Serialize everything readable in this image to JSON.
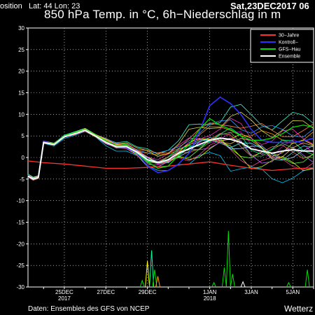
{
  "header": {
    "left": "osition   Lat: 44 Lon: 23",
    "right": "Sat,23DEC2017 06",
    "title": "850 hPa Temp. in °C, 6h−Niederschlag in m"
  },
  "footer": {
    "left": "Daten: Ensembles des GFS von NCEP",
    "right": "Wetterz"
  },
  "colors": {
    "background": "#000000",
    "axis": "#ffffff",
    "grid": "#ffffff",
    "climatology": "#ff3030",
    "control": "#3030ff",
    "main": "#00dd00",
    "mean": "#ffffff",
    "members": [
      "#ff9900",
      "#00ccff",
      "#ffff00",
      "#cc00cc",
      "#00ff99",
      "#ff6666",
      "#66ff33",
      "#99ccff",
      "#ffcc66",
      "#33ffcc",
      "#ff33cc",
      "#ccff00",
      "#3399ff",
      "#ff8844",
      "#44dddd",
      "#dddd44",
      "#bb66ff",
      "#66bb44",
      "#ee4488"
    ]
  },
  "chart_data": {
    "type": "line",
    "title": "850 hPa Temp. in °C, 6h−Niederschlag in m",
    "ylim": [
      -30,
      30
    ],
    "yticks": [
      30,
      25,
      20,
      15,
      10,
      5,
      0,
      -5,
      -10,
      -15,
      -20,
      -25,
      -30
    ],
    "xlim": [
      23.25,
      37.0
    ],
    "xticks": [
      {
        "x": 25,
        "line1": "25DEC",
        "line2": "2017"
      },
      {
        "x": 27,
        "line1": "27DEC",
        "line2": ""
      },
      {
        "x": 29,
        "line1": "29DEC",
        "line2": ""
      },
      {
        "x": 32,
        "line1": "1JAN",
        "line2": "2018"
      },
      {
        "x": 34,
        "line1": "3JAN",
        "line2": ""
      },
      {
        "x": 36,
        "line1": "5JAN",
        "line2": ""
      }
    ],
    "legend_position": "top-right",
    "legend": [
      "30−Jahre",
      "Kontroll−",
      "GFS−Hau",
      "Ensemble"
    ],
    "grid": true,
    "temperature": {
      "climatology": {
        "x": [
          23.25,
          24.0,
          25.0,
          26.0,
          27.0,
          28.0,
          29.0,
          30.0,
          31.0,
          32.0,
          33.0,
          34.0,
          35.0,
          36.0,
          37.0
        ],
        "y": [
          -0.8,
          -1.2,
          -1.5,
          -2.0,
          -2.5,
          -2.5,
          -2.3,
          -2.0,
          -1.5,
          -1.0,
          -1.8,
          -2.5,
          -3.0,
          -2.6,
          -2.4
        ]
      },
      "control": {
        "x": [
          23.25,
          23.5,
          23.75,
          24.0,
          24.5,
          25.0,
          25.5,
          26.0,
          26.5,
          27.0,
          27.5,
          28.0,
          28.5,
          29.0,
          29.5,
          30.0,
          30.5,
          31.0,
          31.5,
          32.0,
          32.5,
          33.0,
          33.5,
          34.0,
          34.5,
          35.0,
          35.5,
          36.0,
          36.5,
          37.0
        ],
        "y": [
          -4.0,
          -5.0,
          -4.5,
          3.8,
          3.0,
          4.8,
          5.5,
          6.2,
          5.0,
          3.5,
          2.5,
          2.2,
          1.0,
          -2.0,
          -3.5,
          -3.0,
          -1.5,
          1.0,
          6.0,
          12.0,
          14.0,
          12.5,
          10.0,
          6.5,
          4.0,
          3.5,
          3.5,
          3.5,
          3.8,
          4.5
        ]
      },
      "main": {
        "x": [
          23.25,
          23.5,
          23.75,
          24.0,
          24.5,
          25.0,
          25.5,
          26.0,
          26.5,
          27.0,
          27.5,
          28.0,
          28.5,
          29.0,
          29.5,
          30.0,
          30.5,
          31.0,
          31.5,
          32.0,
          32.5,
          33.0,
          33.5,
          34.0,
          34.5,
          35.0,
          35.5,
          36.0,
          36.5,
          37.0
        ],
        "y": [
          -4.2,
          -5.0,
          -4.6,
          3.5,
          3.2,
          5.0,
          5.8,
          6.5,
          5.2,
          3.8,
          2.7,
          3.0,
          1.0,
          -1.0,
          -2.5,
          -2.0,
          0.5,
          3.0,
          6.5,
          9.0,
          7.5,
          6.5,
          5.0,
          4.0,
          4.0,
          4.5,
          5.5,
          7.0,
          7.5,
          7.0
        ]
      },
      "mean": {
        "x": [
          23.25,
          23.5,
          23.75,
          24.0,
          24.5,
          25.0,
          25.5,
          26.0,
          26.5,
          27.0,
          27.5,
          28.0,
          28.5,
          29.0,
          29.5,
          30.0,
          30.5,
          31.0,
          31.5,
          32.0,
          32.5,
          33.0,
          33.5,
          34.0,
          34.5,
          35.0,
          35.5,
          36.0,
          36.5,
          37.0
        ],
        "y": [
          -4.3,
          -5.0,
          -4.6,
          3.5,
          3.0,
          4.8,
          5.5,
          6.3,
          5.0,
          3.5,
          2.5,
          2.5,
          1.2,
          -0.5,
          -1.2,
          -0.5,
          1.0,
          2.0,
          3.0,
          4.0,
          4.5,
          4.2,
          3.5,
          2.0,
          1.5,
          1.0,
          1.5,
          1.8,
          1.5,
          1.5
        ]
      }
    },
    "precipitation_spikes": [
      {
        "x": 28.75,
        "value": -28.5
      },
      {
        "x": 29.0,
        "value": -24.0
      },
      {
        "x": 29.2,
        "value": -21.5
      },
      {
        "x": 29.35,
        "value": -26.0
      },
      {
        "x": 29.5,
        "value": -27.5
      },
      {
        "x": 32.2,
        "value": -29.0
      },
      {
        "x": 32.7,
        "value": -25.5
      },
      {
        "x": 32.9,
        "value": -17.0
      },
      {
        "x": 33.1,
        "value": -27.0
      },
      {
        "x": 33.6,
        "value": -28.8
      },
      {
        "x": 35.8,
        "value": -29.0
      },
      {
        "x": 36.7,
        "value": -26.0
      }
    ]
  }
}
